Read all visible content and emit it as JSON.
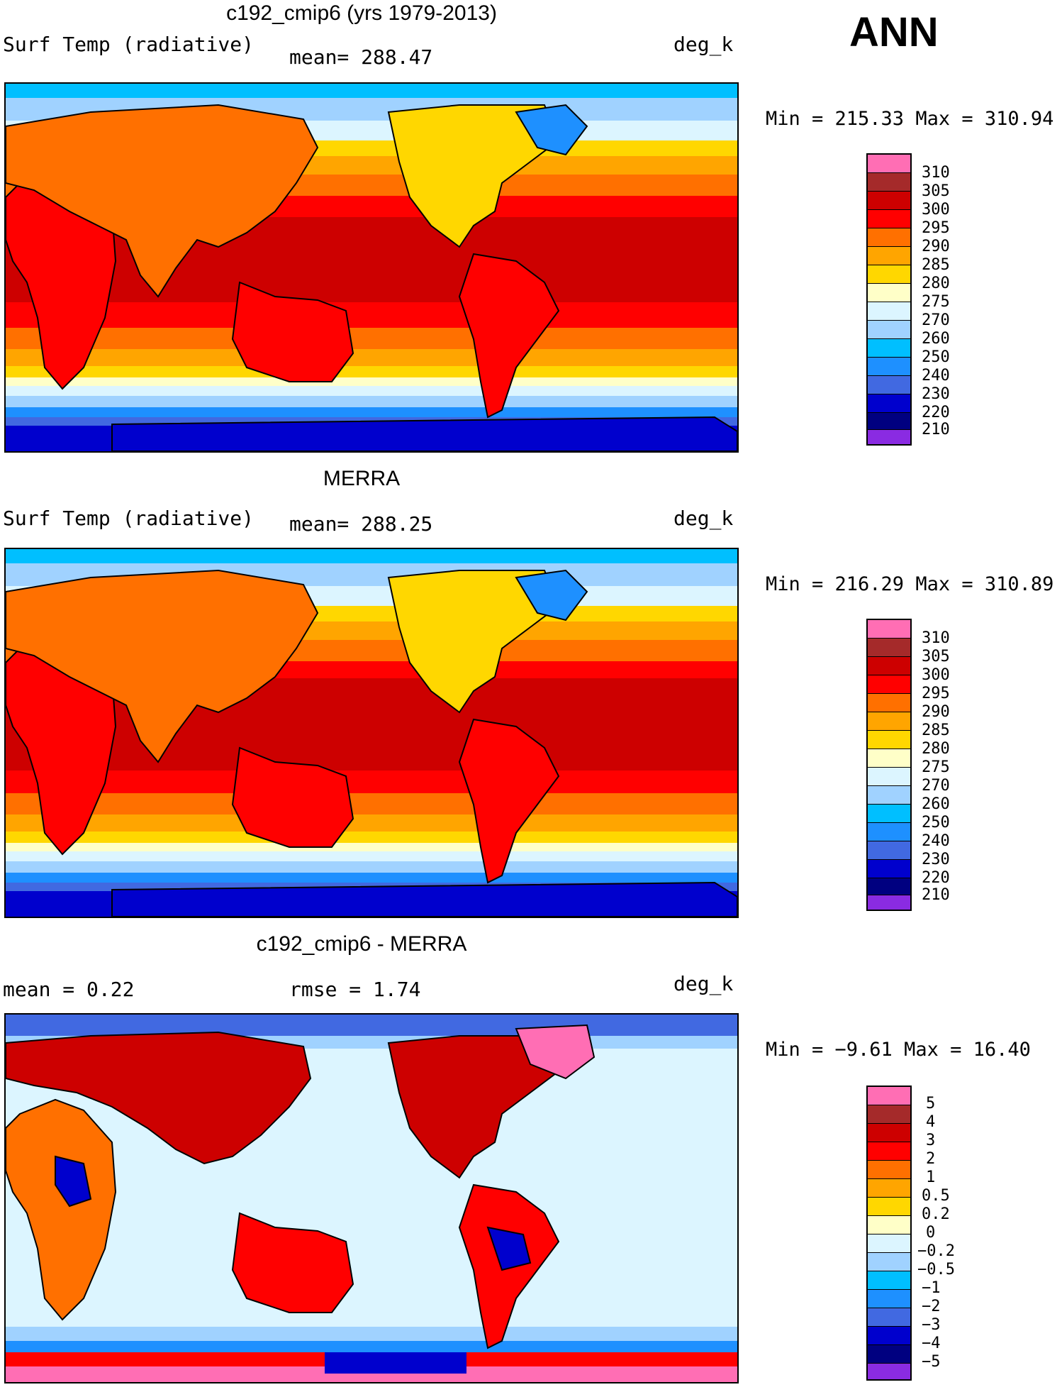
{
  "season": "ANN",
  "panels": [
    {
      "id": "model",
      "title": "c192_cmip6 (yrs 1979-2013)",
      "left_label": "Surf Temp (radiative)",
      "center_label": "mean= 288.47",
      "right_label": "deg_k",
      "minmax": "Min = 215.33 Max = 310.94",
      "colorbar": {
        "colors": [
          "#ff6eb4",
          "#a52a2a",
          "#cd0000",
          "#ff0000",
          "#ff7000",
          "#ffa500",
          "#ffd700",
          "#ffffc8",
          "#dcf5ff",
          "#a0d2ff",
          "#00bfff",
          "#1e90ff",
          "#4169e1",
          "#0000cd",
          "#000080",
          "#8a2be2"
        ],
        "labels": [
          "310",
          "305",
          "300",
          "295",
          "290",
          "285",
          "280",
          "275",
          "270",
          "260",
          "250",
          "240",
          "230",
          "220",
          "210"
        ]
      }
    },
    {
      "id": "obs",
      "title": "MERRA",
      "left_label": "Surf Temp (radiative)",
      "center_label": "mean= 288.25",
      "right_label": "deg_k",
      "minmax": "Min = 216.29 Max = 310.89",
      "colorbar": {
        "colors": [
          "#ff6eb4",
          "#a52a2a",
          "#cd0000",
          "#ff0000",
          "#ff7000",
          "#ffa500",
          "#ffd700",
          "#ffffc8",
          "#dcf5ff",
          "#a0d2ff",
          "#00bfff",
          "#1e90ff",
          "#4169e1",
          "#0000cd",
          "#000080",
          "#8a2be2"
        ],
        "labels": [
          "310",
          "305",
          "300",
          "295",
          "290",
          "285",
          "280",
          "275",
          "270",
          "260",
          "250",
          "240",
          "230",
          "220",
          "210"
        ]
      }
    },
    {
      "id": "diff",
      "title": "c192_cmip6 - MERRA",
      "left_label": "mean =    0.22",
      "center_label": "rmse =    1.74",
      "right_label": "deg_k",
      "minmax": "Min =  −9.61 Max =  16.40",
      "colorbar": {
        "colors": [
          "#ff6eb4",
          "#a52a2a",
          "#cd0000",
          "#ff0000",
          "#ff7000",
          "#ffa500",
          "#ffd700",
          "#ffffc8",
          "#dcf5ff",
          "#a0d2ff",
          "#00bfff",
          "#1e90ff",
          "#4169e1",
          "#0000cd",
          "#000080",
          "#8a2be2"
        ],
        "labels": [
          "5",
          "4",
          "3",
          "2",
          "1",
          "0.5",
          "0.2",
          "0",
          "−0.2",
          "−0.5",
          "−1",
          "−2",
          "−3",
          "−4",
          "−5"
        ]
      }
    }
  ]
}
